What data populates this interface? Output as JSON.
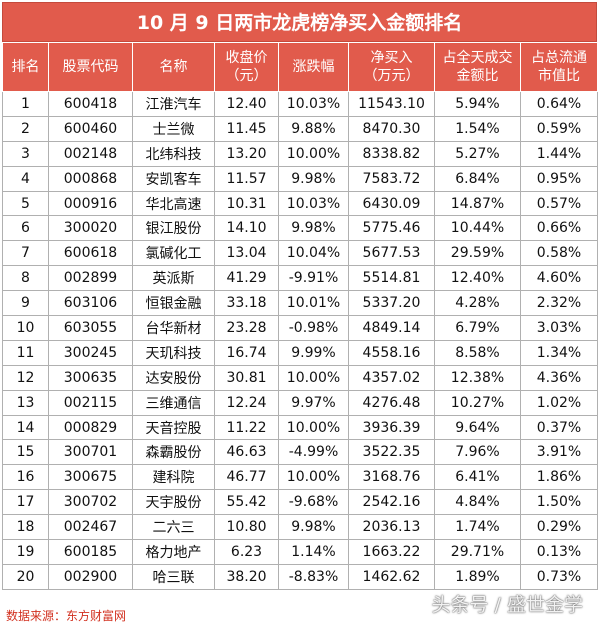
{
  "title": "10 月 9 日两市龙虎榜净买入金额排名",
  "headers": [
    "排名",
    "股票代码",
    "名称",
    "收盘价\n（元）",
    "涨跌幅",
    "净买入\n（万元）",
    "占全天成交\n金额比",
    "占总流通\n市值比"
  ],
  "rows": [
    [
      "1",
      "600418",
      "江淮汽车",
      "12.40",
      "10.03%",
      "11543.10",
      "5.94%",
      "0.64%"
    ],
    [
      "2",
      "600460",
      "士兰微",
      "11.45",
      "9.88%",
      "8470.30",
      "1.54%",
      "0.59%"
    ],
    [
      "3",
      "002148",
      "北纬科技",
      "13.20",
      "10.00%",
      "8338.82",
      "5.27%",
      "1.44%"
    ],
    [
      "4",
      "000868",
      "安凯客车",
      "11.57",
      "9.98%",
      "7583.72",
      "6.84%",
      "0.95%"
    ],
    [
      "5",
      "000916",
      "华北高速",
      "10.31",
      "10.03%",
      "6430.09",
      "14.87%",
      "0.57%"
    ],
    [
      "6",
      "300020",
      "银江股份",
      "14.10",
      "9.98%",
      "5775.46",
      "10.44%",
      "0.66%"
    ],
    [
      "7",
      "600618",
      "氯碱化工",
      "13.04",
      "10.04%",
      "5677.53",
      "29.59%",
      "0.58%"
    ],
    [
      "8",
      "002899",
      "英派斯",
      "41.29",
      "-9.91%",
      "5514.81",
      "12.40%",
      "4.60%"
    ],
    [
      "9",
      "603106",
      "恒银金融",
      "33.18",
      "10.01%",
      "5337.20",
      "4.28%",
      "2.32%"
    ],
    [
      "10",
      "603055",
      "台华新材",
      "23.28",
      "-0.98%",
      "4849.14",
      "6.79%",
      "3.03%"
    ],
    [
      "11",
      "300245",
      "天玑科技",
      "16.74",
      "9.99%",
      "4558.16",
      "8.58%",
      "1.34%"
    ],
    [
      "12",
      "300635",
      "达安股份",
      "30.81",
      "10.00%",
      "4357.02",
      "12.38%",
      "4.36%"
    ],
    [
      "13",
      "002115",
      "三维通信",
      "12.24",
      "9.97%",
      "4276.48",
      "10.27%",
      "1.02%"
    ],
    [
      "14",
      "000829",
      "天音控股",
      "11.22",
      "10.00%",
      "3936.39",
      "9.64%",
      "0.37%"
    ],
    [
      "15",
      "300701",
      "森霸股份",
      "46.63",
      "-4.99%",
      "3522.35",
      "7.96%",
      "3.91%"
    ],
    [
      "16",
      "300675",
      "建科院",
      "46.77",
      "10.00%",
      "3168.76",
      "6.41%",
      "1.86%"
    ],
    [
      "17",
      "300702",
      "天宇股份",
      "55.42",
      "-9.68%",
      "2542.16",
      "4.84%",
      "1.50%"
    ],
    [
      "18",
      "002467",
      "二六三",
      "10.80",
      "9.98%",
      "2036.13",
      "1.74%",
      "0.29%"
    ],
    [
      "19",
      "600185",
      "格力地产",
      "6.23",
      "1.14%",
      "1663.22",
      "29.71%",
      "0.13%"
    ],
    [
      "20",
      "002900",
      "哈三联",
      "38.20",
      "-8.83%",
      "1462.62",
      "1.89%",
      "0.73%"
    ]
  ],
  "footer": "数据来源：东方财富网",
  "watermark": "头条号 / 盛世金学"
}
